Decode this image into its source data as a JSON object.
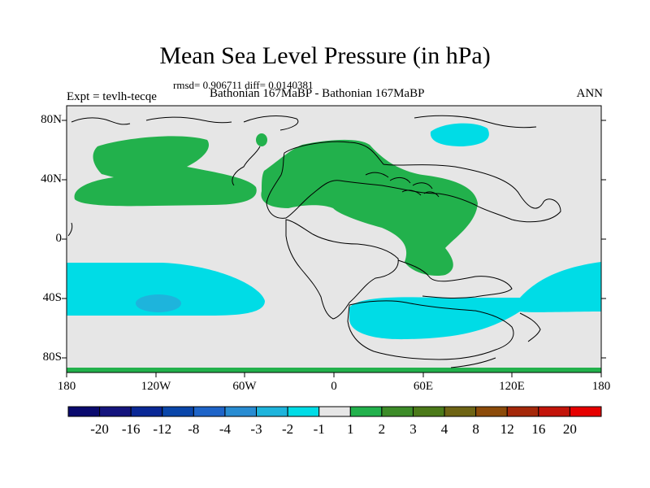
{
  "title": "Mean Sea Level Pressure (in hPa)",
  "stats": "rmsd= 0.906711 diff= 0.0140381",
  "left_string": "Expt = tevlh-tecqe",
  "center_string": "Bathonian 167MaBP - Bathonian 167MaBP",
  "right_string": "ANN",
  "lat_labels": [
    "80N",
    "40N",
    "0",
    "40S",
    "80S"
  ],
  "lon_labels": [
    "180",
    "120W",
    "60W",
    "0",
    "60E",
    "120E",
    "180"
  ],
  "colorbar": {
    "labels": [
      "-20",
      "-16",
      "-12",
      "-8",
      "-4",
      "-3",
      "-2",
      "-1",
      "1",
      "2",
      "3",
      "4",
      "8",
      "12",
      "16",
      "20"
    ],
    "colors": [
      "#0a0a6e",
      "#14147d",
      "#0a2896",
      "#0a46aa",
      "#1e64c8",
      "#288cd2",
      "#1eb4dc",
      "#00dce6",
      "#e6e6e6",
      "#22b14c",
      "#3c8c28",
      "#4b7a19",
      "#6e6414",
      "#8c4b0a",
      "#a5280a",
      "#c3140a",
      "#e60000"
    ]
  },
  "chart_data": {
    "type": "heatmap",
    "variable": "Mean Sea Level Pressure difference",
    "units": "hPa",
    "levels": [
      -20,
      -16,
      -12,
      -8,
      -4,
      -3,
      -2,
      -1,
      1,
      2,
      3,
      4,
      8,
      12,
      16,
      20
    ],
    "background_class": "-1 to 1",
    "regions": [
      {
        "id": "north-pacific-high",
        "class": "1 to 2"
      },
      {
        "id": "north-atlantic-laurasia-high",
        "class": "1 to 2"
      },
      {
        "id": "arctic-low",
        "class": "-2 to -1"
      },
      {
        "id": "south-pacific-low",
        "class": "-2 to -1"
      },
      {
        "id": "south-pacific-low-core",
        "class": "-3 to -2"
      },
      {
        "id": "southern-ocean-low",
        "class": "-2 to -1"
      },
      {
        "id": "south-indian-pacific-low",
        "class": "-2 to -1"
      }
    ],
    "xlim": [
      -180,
      180
    ],
    "ylim": [
      -90,
      90
    ]
  }
}
